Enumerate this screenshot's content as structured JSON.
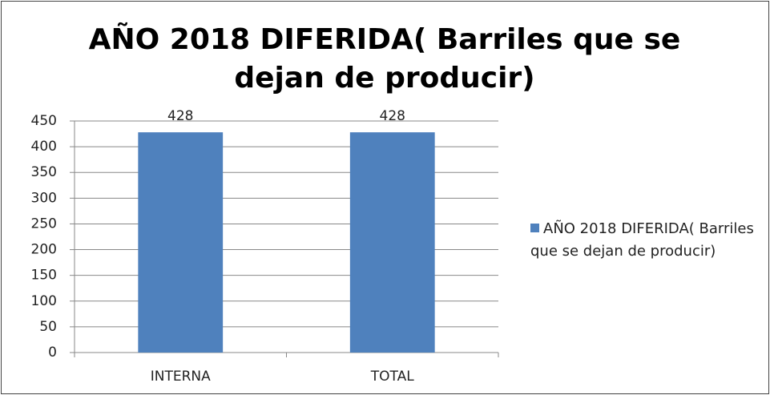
{
  "chart_data": {
    "type": "bar",
    "title": "AÑO 2018 DIFERIDA( Barriles que se dejan de producir)",
    "categories": [
      "INTERNA",
      "TOTAL"
    ],
    "series": [
      {
        "name": "AÑO 2018 DIFERIDA( Barriles que se dejan de producir)",
        "color": "#4f81bd",
        "values": [
          428,
          428
        ]
      }
    ],
    "ylim": [
      0,
      450
    ],
    "yticks": [
      0,
      50,
      100,
      150,
      200,
      250,
      300,
      350,
      400,
      450
    ],
    "grid": true,
    "legend": "right",
    "data_labels": true
  }
}
